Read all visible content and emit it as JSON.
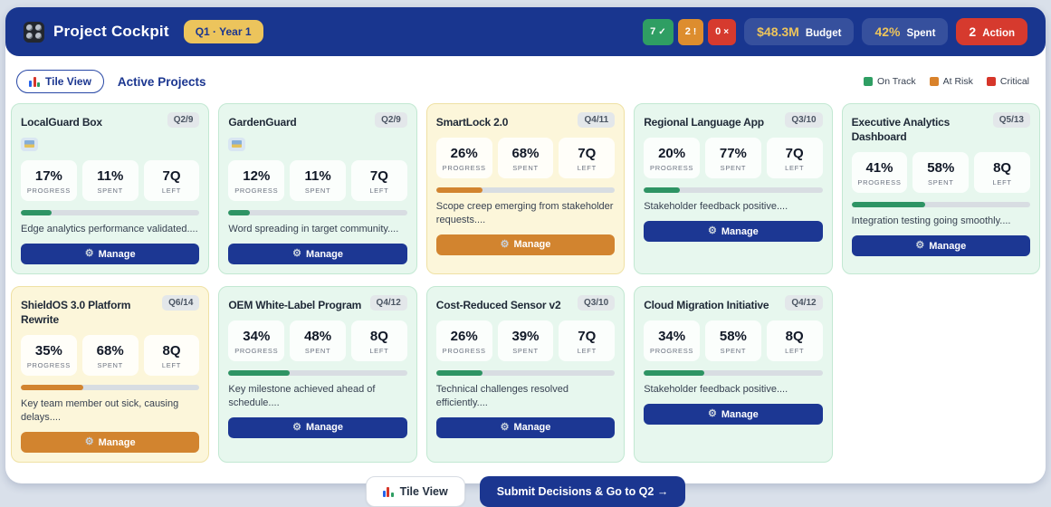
{
  "header": {
    "title": "Project Cockpit",
    "quarter_badge": "Q1 · Year 1",
    "status_counts": [
      {
        "kind": "on-track",
        "value": "7",
        "symbol": "✓",
        "color": "#2f9e63"
      },
      {
        "kind": "at-risk",
        "value": "2",
        "symbol": "!",
        "color": "#dd8d2e"
      },
      {
        "kind": "critical",
        "value": "0",
        "symbol": "×",
        "color": "#d63a2e"
      }
    ],
    "budget": {
      "value": "$48.3M",
      "label": "Budget"
    },
    "spent": {
      "value": "42%",
      "label": "Spent"
    },
    "action": {
      "value": "2",
      "label": "Action"
    }
  },
  "toolbar": {
    "tile_view_label": "Tile View",
    "heading": "Active Projects",
    "legend": [
      {
        "label": "On Track",
        "color": "#2f9e63"
      },
      {
        "label": "At Risk",
        "color": "#d9822b"
      },
      {
        "label": "Critical",
        "color": "#d6362a"
      }
    ]
  },
  "tile": {
    "stat_labels": [
      "PROGRESS",
      "SPENT",
      "LEFT"
    ],
    "manage_label": "Manage"
  },
  "projects": [
    {
      "name": "LocalGuard Box",
      "quarter": "Q2/9",
      "status": "on-track",
      "has_icon": true,
      "progress": "17%",
      "spent": "11%",
      "left": "7Q",
      "progress_pct": 17,
      "note": "Edge analytics performance validated...."
    },
    {
      "name": "GardenGuard",
      "quarter": "Q2/9",
      "status": "on-track",
      "has_icon": true,
      "progress": "12%",
      "spent": "11%",
      "left": "7Q",
      "progress_pct": 12,
      "note": "Word spreading in target community...."
    },
    {
      "name": "SmartLock 2.0",
      "quarter": "Q4/11",
      "status": "at-risk",
      "has_icon": false,
      "progress": "26%",
      "spent": "68%",
      "left": "7Q",
      "progress_pct": 26,
      "note": "Scope creep emerging from stakeholder requests...."
    },
    {
      "name": "Regional Language App",
      "quarter": "Q3/10",
      "status": "on-track",
      "has_icon": false,
      "progress": "20%",
      "spent": "77%",
      "left": "7Q",
      "progress_pct": 20,
      "note": "Stakeholder feedback positive...."
    },
    {
      "name": "Executive Analytics Dashboard",
      "quarter": "Q5/13",
      "status": "on-track",
      "has_icon": false,
      "progress": "41%",
      "spent": "58%",
      "left": "8Q",
      "progress_pct": 41,
      "note": "Integration testing going smoothly...."
    },
    {
      "name": "ShieldOS 3.0 Platform Rewrite",
      "quarter": "Q6/14",
      "status": "at-risk",
      "has_icon": false,
      "progress": "35%",
      "spent": "68%",
      "left": "8Q",
      "progress_pct": 35,
      "note": "Key team member out sick, causing delays...."
    },
    {
      "name": "OEM White-Label Program",
      "quarter": "Q4/12",
      "status": "on-track",
      "has_icon": false,
      "progress": "34%",
      "spent": "48%",
      "left": "8Q",
      "progress_pct": 34,
      "note": "Key milestone achieved ahead of schedule...."
    },
    {
      "name": "Cost-Reduced Sensor v2",
      "quarter": "Q3/10",
      "status": "on-track",
      "has_icon": false,
      "progress": "26%",
      "spent": "39%",
      "left": "7Q",
      "progress_pct": 26,
      "note": "Technical challenges resolved efficiently...."
    },
    {
      "name": "Cloud Migration Initiative",
      "quarter": "Q4/12",
      "status": "on-track",
      "has_icon": false,
      "progress": "34%",
      "spent": "58%",
      "left": "8Q",
      "progress_pct": 34,
      "note": "Stakeholder feedback positive...."
    }
  ],
  "footer": {
    "tile_view_label": "Tile View",
    "submit_label": "Submit Decisions & Go to Q2 →"
  },
  "colors": {
    "header_blue": "#19368f",
    "gold": "#ecc45c",
    "on_track_green": "#2e9464",
    "at_risk_orange": "#d2842f",
    "critical_red": "#d63a2e"
  }
}
